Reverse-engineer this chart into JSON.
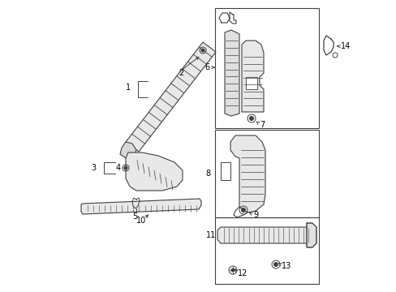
{
  "bg_color": "#ffffff",
  "line_color": "#404040",
  "label_color": "#000000",
  "fig_width": 4.89,
  "fig_height": 3.6,
  "dpi": 100
}
